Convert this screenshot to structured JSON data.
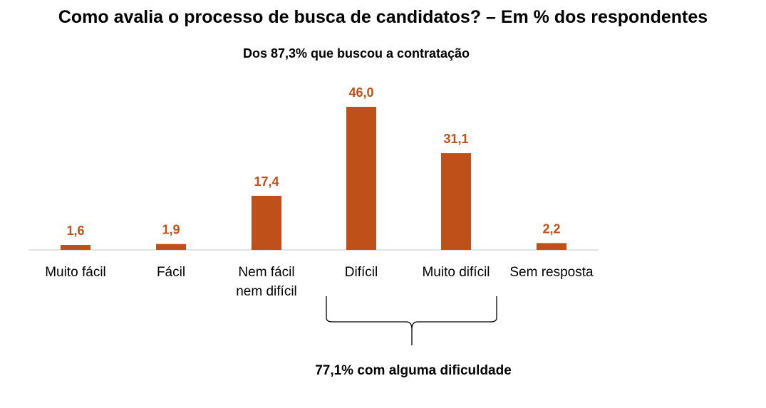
{
  "title": "Como avalia o processo de busca de candidatos? – Em % dos respondentes",
  "subtitle": "Dos 87,3% que buscou a contratação",
  "colors": {
    "bar": "#C0501A",
    "label": "#C0501A",
    "axis": "#d9d9d9",
    "bracket": "#000000"
  },
  "chart_data": {
    "type": "bar",
    "title": "Como avalia o processo de busca de candidatos? – Em % dos respondentes",
    "subtitle": "Dos 87,3% que buscou a contratação",
    "categories": [
      "Muito fácil",
      "Fácil",
      "Nem fácil nem difícil",
      "Difícil",
      "Muito difícil",
      "Sem resposta"
    ],
    "category_lines": [
      [
        "Muito fácil"
      ],
      [
        "Fácil"
      ],
      [
        "Nem fácil",
        "nem difícil"
      ],
      [
        "Difícil"
      ],
      [
        "Muito difícil"
      ],
      [
        "Sem resposta"
      ]
    ],
    "values": [
      1.6,
      1.9,
      17.4,
      46.0,
      31.1,
      2.2
    ],
    "value_labels": [
      "1,6",
      "1,9",
      "17,4",
      "46,0",
      "31,1",
      "2,2"
    ],
    "ylim": [
      0,
      46.0
    ],
    "grid": false,
    "xlabel": "",
    "ylabel": "",
    "annotations": [
      {
        "text": "77,1% com alguma dificuldade",
        "spans_categories": [
          "Difícil",
          "Muito difícil"
        ]
      }
    ]
  }
}
